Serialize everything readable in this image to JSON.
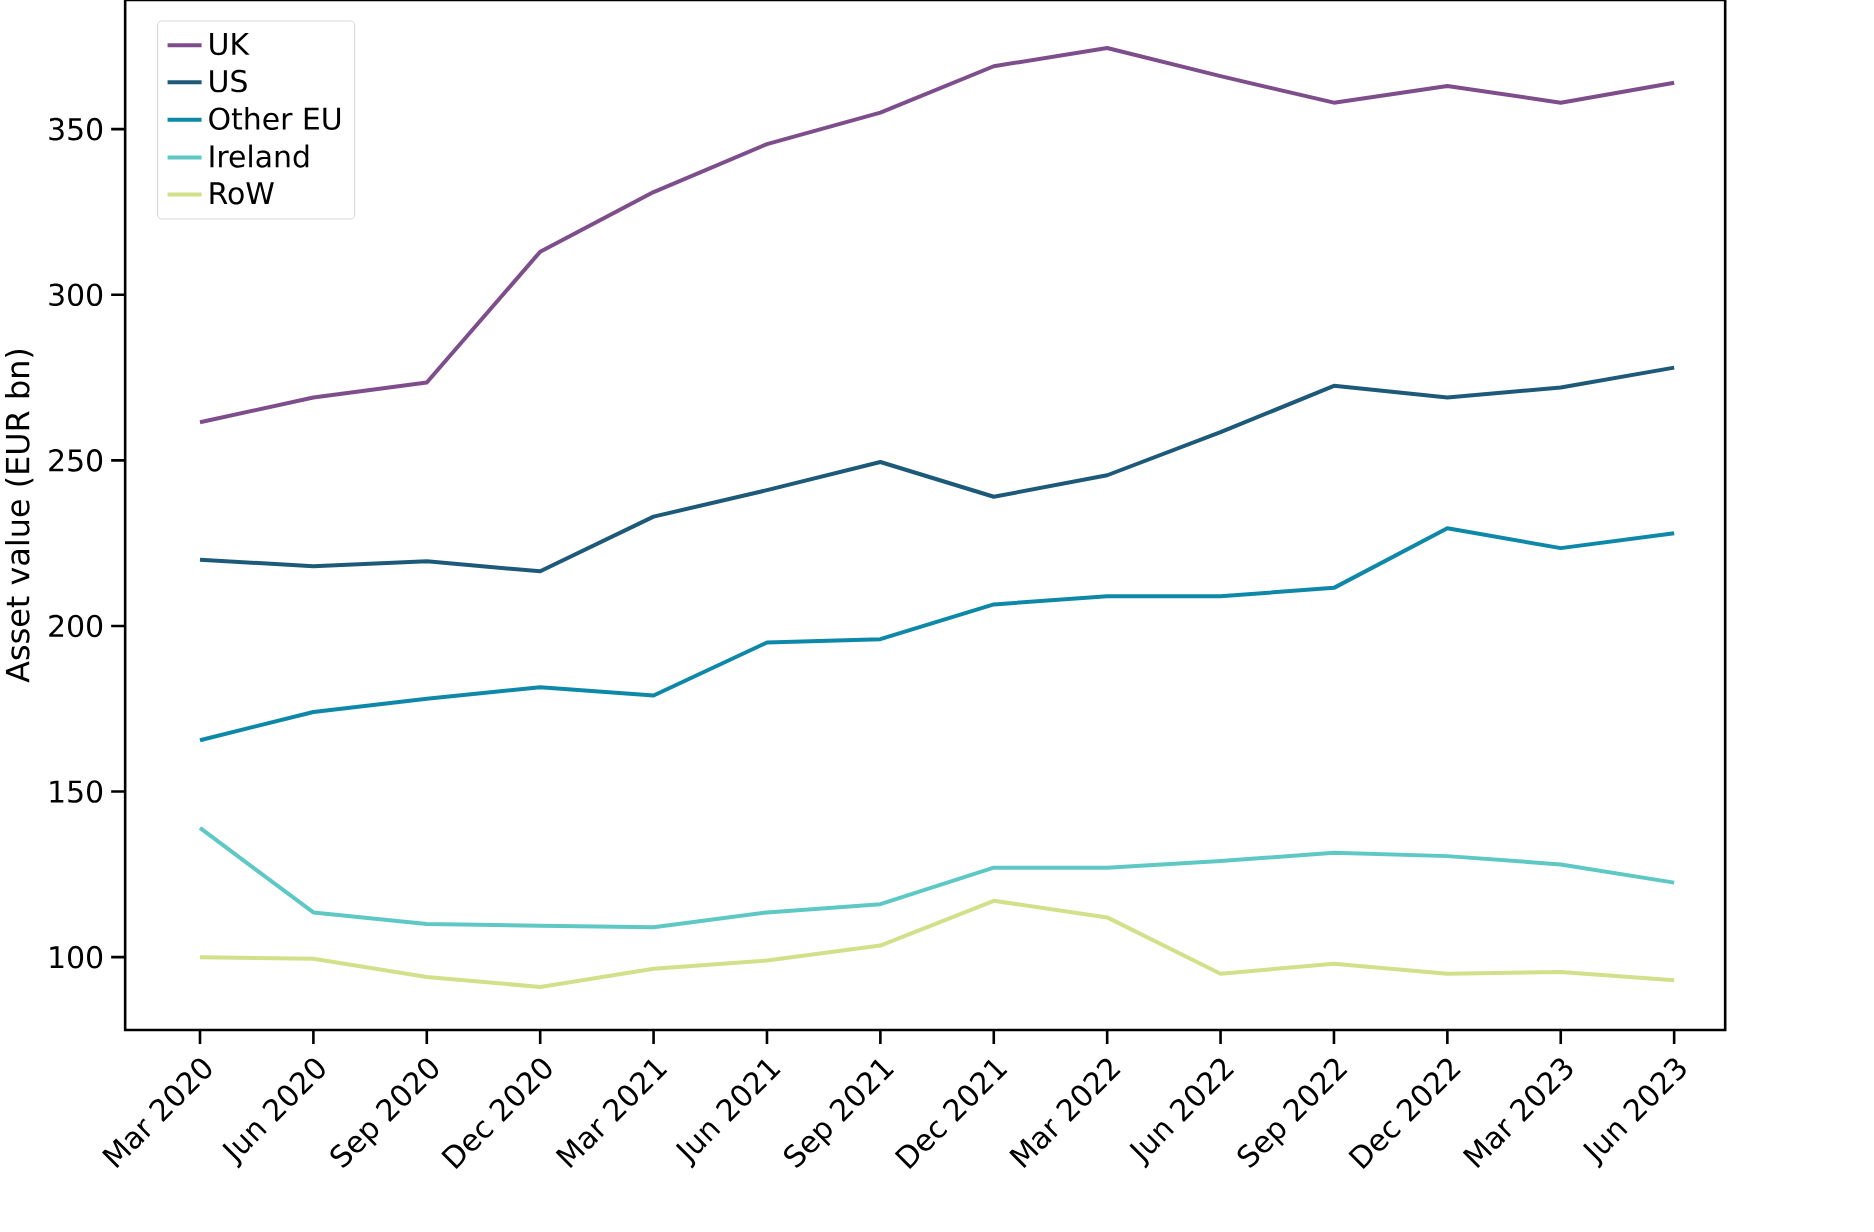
{
  "chart_data": {
    "type": "line",
    "ylabel": "Asset value (EUR bn)",
    "categories": [
      "Mar 2020",
      "Jun 2020",
      "Sep 2020",
      "Dec 2020",
      "Mar 2021",
      "Jun 2021",
      "Sep 2021",
      "Dec 2021",
      "Mar 2022",
      "Jun 2022",
      "Sep 2022",
      "Dec 2022",
      "Mar 2023",
      "Jun 2023"
    ],
    "series": [
      {
        "name": "UK",
        "color": "#7e4e8c",
        "values": [
          261.5,
          269,
          273.5,
          313,
          331,
          345.5,
          355,
          369,
          374.5,
          366,
          358,
          363,
          358,
          364
        ]
      },
      {
        "name": "US",
        "color": "#1d5a7a",
        "values": [
          220,
          218,
          219.5,
          216.5,
          233,
          241,
          249.5,
          239,
          245.5,
          258.5,
          272.5,
          269,
          272,
          278
        ]
      },
      {
        "name": "Other EU",
        "color": "#0e88a8",
        "values": [
          165.5,
          174,
          178,
          181.5,
          179,
          195,
          196,
          206.5,
          209,
          209,
          211.5,
          229.5,
          223.5,
          228
        ]
      },
      {
        "name": "Ireland",
        "color": "#5ec8c4",
        "values": [
          139,
          113.5,
          110,
          109.5,
          109,
          113.5,
          116,
          127,
          127,
          129,
          131.5,
          130.5,
          128,
          122.5
        ]
      },
      {
        "name": "RoW",
        "color": "#d2e08a",
        "values": [
          100,
          99.5,
          94,
          91,
          96.5,
          99,
          103.5,
          117,
          112,
          95,
          98,
          95,
          95.5,
          93
        ]
      }
    ],
    "ylim": [
      78,
      389
    ],
    "yticks": [
      100,
      150,
      200,
      250,
      300,
      350
    ],
    "legend": "top left",
    "grid": false,
    "marker": "none",
    "line_style": "solid"
  }
}
